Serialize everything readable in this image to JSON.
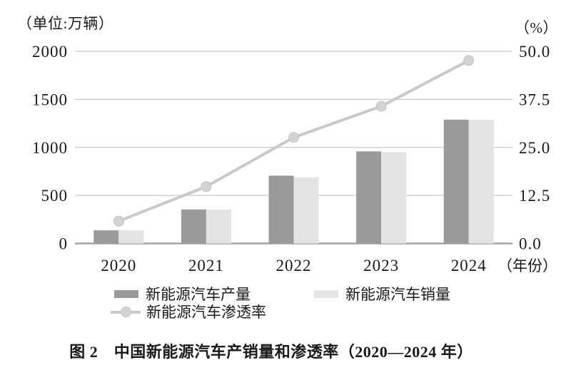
{
  "page": {
    "type": "document-figure"
  },
  "chart_data": {
    "type": "combo-bar-line",
    "title": "图 2　中国新能源汽车产销量和渗透率（2020—2024 年）",
    "categories": [
      "2020",
      "2021",
      "2022",
      "2023",
      "2024"
    ],
    "x_axis_suffix": "（年份）",
    "series": [
      {
        "name": "新能源汽车产量",
        "type": "bar",
        "axis": "left",
        "color": "#9a9a9a",
        "values": [
          136.6,
          354.5,
          705.8,
          958.7,
          1288.8
        ]
      },
      {
        "name": "新能源汽车销量",
        "type": "bar",
        "axis": "left",
        "color": "#e4e4e4",
        "values": [
          136.7,
          352.1,
          688.7,
          949.5,
          1286.6
        ]
      },
      {
        "name": "新能源汽车渗透率",
        "type": "line",
        "axis": "right",
        "color": "#c9c9c9",
        "marker_color": "#d3d3d3",
        "marker_edge_color": "#c3c3c3",
        "values": [
          5.8,
          14.8,
          27.6,
          35.7,
          47.6
        ]
      }
    ],
    "left_axis": {
      "title": "（单位:万辆）",
      "min": 0,
      "max": 2000,
      "tick_labels": [
        "0",
        "500",
        "1000",
        "1500",
        "2000"
      ]
    },
    "right_axis": {
      "title": "（%）",
      "min": 0,
      "max": 50,
      "tick_labels": [
        "0.0",
        "12.5",
        "25.0",
        "37.5",
        "50.0"
      ]
    },
    "grid": true,
    "gridline_color": "#c9c9c9",
    "baseline_color": "#a3a3a3",
    "legend_position": "bottom"
  }
}
